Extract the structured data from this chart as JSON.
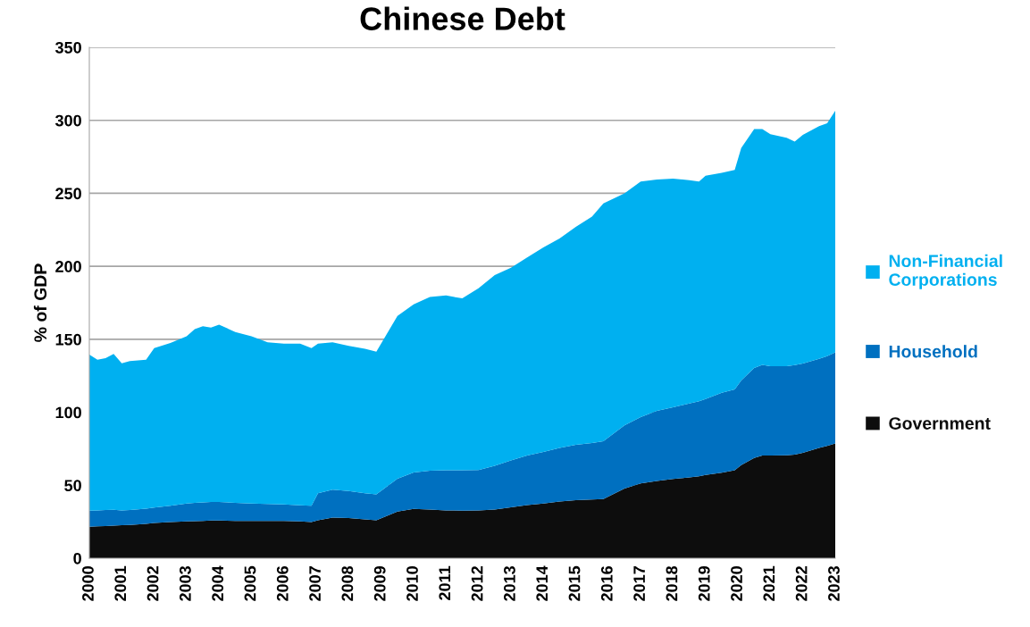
{
  "chart_data": {
    "type": "area",
    "title": "Chinese Debt",
    "ylabel": "% of GDP",
    "stacked": true,
    "grid": "y",
    "legend": "right",
    "x": [
      2000,
      2000.25,
      2000.5,
      2000.75,
      2001,
      2001.25,
      2001.75,
      2002,
      2002.5,
      2003,
      2003.25,
      2003.5,
      2003.75,
      2004,
      2004.5,
      2005,
      2005.5,
      2006,
      2006.5,
      2006.85,
      2007.05,
      2007.5,
      2008,
      2008.5,
      2008.85,
      2009.5,
      2010,
      2010.5,
      2011,
      2011.5,
      2012,
      2012.5,
      2013,
      2013.5,
      2014,
      2014.5,
      2015,
      2015.5,
      2015.85,
      2016.5,
      2017,
      2017.5,
      2018,
      2018.5,
      2018.8,
      2019,
      2019.5,
      2019.9,
      2020.1,
      2020.5,
      2020.75,
      2021,
      2021.5,
      2021.75,
      2022,
      2022.5,
      2022.75,
      2023
    ],
    "series": [
      {
        "name": "Government",
        "color": "#0d0d0d",
        "values": [
          21.6,
          21.8,
          22,
          22.3,
          22.6,
          22.8,
          23.6,
          24.2,
          24.8,
          25.2,
          25.4,
          25.6,
          25.8,
          25.8,
          25.6,
          25.5,
          25.5,
          25.5,
          25.2,
          24.8,
          26,
          27.8,
          27.6,
          26.6,
          26,
          32,
          33.8,
          33.3,
          32.8,
          32.6,
          32.8,
          33.3,
          34.9,
          36.4,
          37.5,
          38.9,
          39.8,
          40.3,
          40.6,
          47.7,
          51.2,
          52.9,
          54.3,
          55.4,
          56.2,
          57.1,
          58.6,
          60.2,
          63.8,
          68.7,
          70.4,
          70.4,
          70.5,
          71,
          72.2,
          75.5,
          77,
          78.6
        ]
      },
      {
        "name": "Household",
        "color": "#0070c0",
        "values": [
          11.0,
          11.0,
          11.0,
          10.9,
          10.2,
          10.2,
          10.4,
          10.5,
          11.2,
          12.3,
          12.6,
          12.6,
          12.7,
          12.7,
          12.4,
          12.0,
          11.7,
          11.3,
          11.0,
          11.2,
          18.5,
          19.2,
          18.4,
          17.9,
          17.8,
          22.5,
          24.9,
          26.7,
          27.4,
          27.7,
          27.7,
          30.1,
          32.1,
          34.0,
          35.3,
          36.6,
          37.9,
          38.7,
          39.6,
          43.3,
          45.5,
          48.1,
          49.1,
          50.6,
          51.3,
          51.9,
          54.8,
          55.4,
          58.0,
          61.7,
          62.0,
          61.2,
          61.1,
          61.3,
          61.2,
          61.1,
          61.5,
          62.4
        ]
      },
      {
        "name": "Non-Financial\nCorporations",
        "color": "#00b0f0",
        "values": [
          106.9,
          103.2,
          104.0,
          106.8,
          100.7,
          102.0,
          102.0,
          109.3,
          111.5,
          114.5,
          119.0,
          120.8,
          119.5,
          121.5,
          117.0,
          114.5,
          110.8,
          110.2,
          110.8,
          108.0,
          102.5,
          101.0,
          99.5,
          99.0,
          97.7,
          111.5,
          115.3,
          119.0,
          119.8,
          117.7,
          124.5,
          130.6,
          132.0,
          135.6,
          140.2,
          143.5,
          149.3,
          155.0,
          162.8,
          159.0,
          161.3,
          158.5,
          156.6,
          153.0,
          150.5,
          153.0,
          150.6,
          150.4,
          159.2,
          163.6,
          161.6,
          158.9,
          156.4,
          153.2,
          156.6,
          159.4,
          159.5,
          165.5
        ]
      }
    ],
    "xlim": [
      2000,
      2023
    ],
    "xticks": [
      2000,
      2001,
      2002,
      2003,
      2004,
      2005,
      2006,
      2007,
      2008,
      2009,
      2010,
      2011,
      2012,
      2013,
      2014,
      2015,
      2016,
      2017,
      2018,
      2019,
      2020,
      2021,
      2022,
      2023
    ],
    "ylim": [
      0,
      350
    ],
    "yticks": [
      0,
      50,
      100,
      150,
      200,
      250,
      300,
      350
    ]
  }
}
